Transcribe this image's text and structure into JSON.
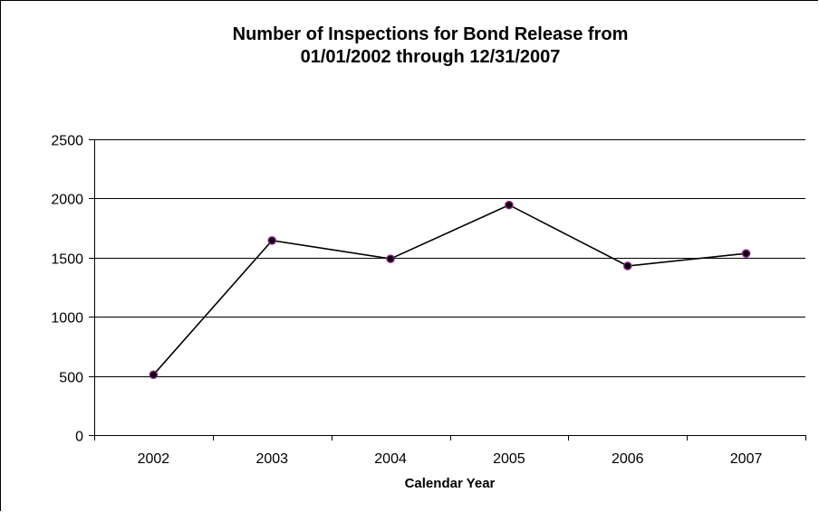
{
  "chart_data": {
    "type": "line",
    "title": [
      "Number of Inspections for Bond Release from",
      "01/01/2002 through 12/31/2007"
    ],
    "xlabel": "Calendar Year",
    "ylabel": "",
    "categories": [
      "2002",
      "2003",
      "2004",
      "2005",
      "2006",
      "2007"
    ],
    "series": [
      {
        "values": [
          510,
          1645,
          1490,
          1945,
          1430,
          1535
        ]
      }
    ],
    "ylim": [
      0,
      2500
    ],
    "yticks": [
      0,
      500,
      1000,
      1500,
      2000,
      2500
    ],
    "grid": true,
    "legend": "none",
    "colors": {
      "line": "#000000",
      "marker_fill": "#000000",
      "marker_edge": "#8b1a8b",
      "grid": "#000000"
    }
  }
}
